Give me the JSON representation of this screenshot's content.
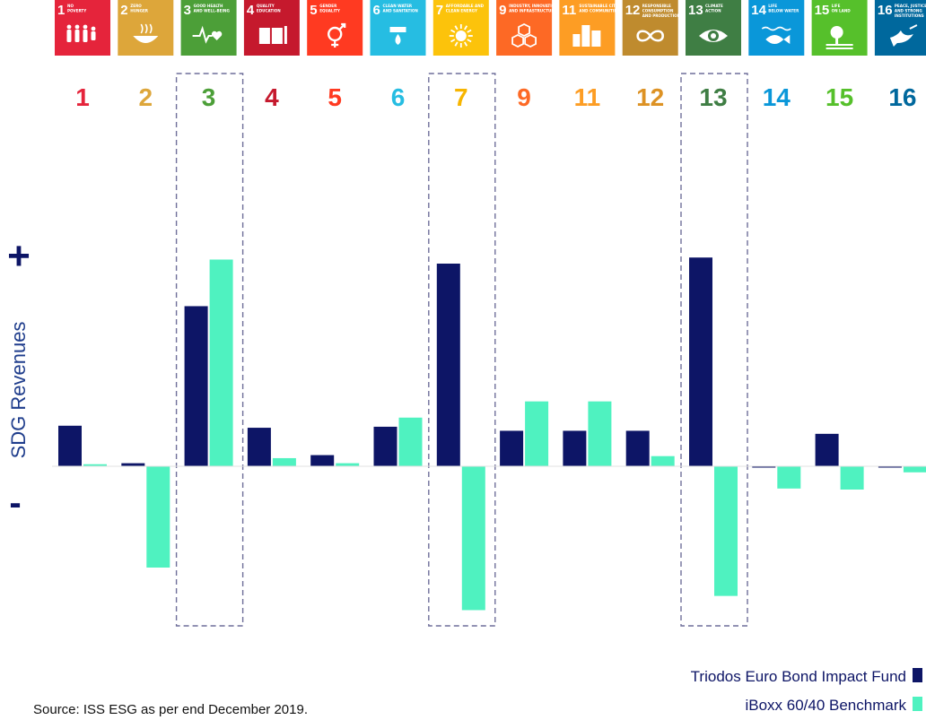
{
  "chart_data": {
    "type": "bar",
    "categories": [
      "1",
      "2",
      "3",
      "4",
      "5",
      "6",
      "7",
      "9",
      "11",
      "12",
      "13",
      "14",
      "15",
      "16"
    ],
    "category_colors": [
      "#e5243b",
      "#dda63a",
      "#4c9f38",
      "#c5192d",
      "#ff3a21",
      "#26bde2",
      "#fcc30b",
      "#fd6925",
      "#fd9d24",
      "#bf8b2e",
      "#3f7e44",
      "#0a97d9",
      "#56c02b",
      "#00689d"
    ],
    "goal_label_colors": [
      "#e5243b",
      "#dda63a",
      "#4c9f38",
      "#c5192d",
      "#ff3a21",
      "#26bde2",
      "#f7b500",
      "#fd6925",
      "#fd9d24",
      "#dd9224",
      "#3f7e44",
      "#0a97d9",
      "#56c02b",
      "#00689d"
    ],
    "goal_tiles": [
      {
        "num": "1",
        "lines": [
          "NO",
          "POVERTY"
        ],
        "icon": "family-icon"
      },
      {
        "num": "2",
        "lines": [
          "ZERO",
          "HUNGER"
        ],
        "icon": "bowl-icon"
      },
      {
        "num": "3",
        "lines": [
          "GOOD HEALTH",
          "AND WELL-BEING"
        ],
        "icon": "heartbeat-icon"
      },
      {
        "num": "4",
        "lines": [
          "QUALITY",
          "EDUCATION"
        ],
        "icon": "book-icon"
      },
      {
        "num": "5",
        "lines": [
          "GENDER",
          "EQUALITY"
        ],
        "icon": "gender-icon"
      },
      {
        "num": "6",
        "lines": [
          "CLEAN WATER",
          "AND SANITATION"
        ],
        "icon": "water-drop-icon"
      },
      {
        "num": "7",
        "lines": [
          "AFFORDABLE AND",
          "CLEAN ENERGY"
        ],
        "icon": "sun-icon"
      },
      {
        "num": "9",
        "lines": [
          "INDUSTRY, INNOVATION",
          "AND INFRASTRUCTURE"
        ],
        "icon": "cubes-icon"
      },
      {
        "num": "11",
        "lines": [
          "SUSTAINABLE CITIES",
          "AND COMMUNITIES"
        ],
        "icon": "city-icon"
      },
      {
        "num": "12",
        "lines": [
          "RESPONSIBLE",
          "CONSUMPTION",
          "AND PRODUCTION"
        ],
        "icon": "infinity-icon"
      },
      {
        "num": "13",
        "lines": [
          "CLIMATE",
          "ACTION"
        ],
        "icon": "eye-globe-icon"
      },
      {
        "num": "14",
        "lines": [
          "LIFE",
          "BELOW WATER"
        ],
        "icon": "fish-icon"
      },
      {
        "num": "15",
        "lines": [
          "LIFE",
          "ON LAND"
        ],
        "icon": "tree-icon"
      },
      {
        "num": "16",
        "lines": [
          "PEACE, JUSTICE",
          "AND STRONG",
          "INSTITUTIONS"
        ],
        "icon": "dove-icon"
      }
    ],
    "series": [
      {
        "name": "Triodos Euro Bond Impact Fund",
        "color": "#0d1566",
        "values": [
          0.2,
          0.015,
          0.79,
          0.19,
          0.055,
          0.195,
          1.0,
          0.175,
          0.175,
          0.175,
          1.03,
          -0.005,
          0.16,
          0.0
        ]
      },
      {
        "name": "iBoxx 60/40 Benchmark",
        "color": "#4ff2c0",
        "values": [
          0.01,
          -0.5,
          1.02,
          0.04,
          0.015,
          0.24,
          -0.71,
          0.32,
          0.32,
          0.05,
          -0.64,
          -0.11,
          -0.115,
          -0.03
        ]
      }
    ],
    "ylabel": "SDG Revenues",
    "y_plus_label": "+",
    "y_minus_label": "-",
    "ylim": [
      -0.78,
      1.1
    ],
    "highlighted_categories": [
      "3",
      "7",
      "13"
    ],
    "highlight_color": "#6f6f9a",
    "grid": false,
    "legend_position": "bottom-right",
    "source": "Source: ISS ESG as per end December 2019."
  }
}
